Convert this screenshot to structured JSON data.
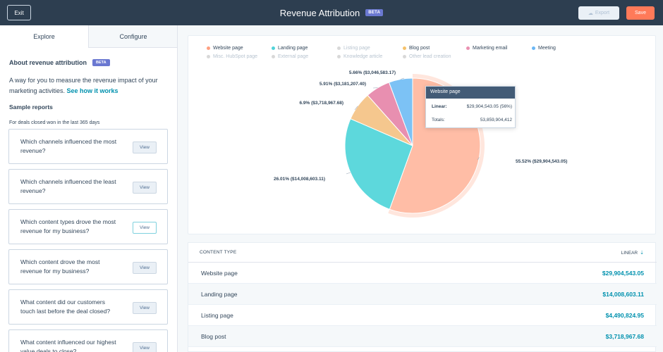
{
  "topbar": {
    "exit_label": "Exit",
    "title": "Revenue Attribution",
    "beta": "BETA",
    "export_label": "Export",
    "save_label": "Save"
  },
  "tabs": [
    {
      "label": "Explore",
      "active": true
    },
    {
      "label": "Configure",
      "active": false
    }
  ],
  "about": {
    "title": "About revenue attribution",
    "beta": "BETA",
    "description": "A way for you to measure the revenue impact of your marketing activities.",
    "link": "See how it works"
  },
  "sample_reports": {
    "title": "Sample reports",
    "subtitle": "For deals closed won in the last 365 days",
    "view_label": "View",
    "items": [
      {
        "text": "Which channels influenced the most revenue?"
      },
      {
        "text": "Which channels influenced the least revenue?"
      },
      {
        "text": "Which content types drove the most revenue for my business?"
      },
      {
        "text": "Which content drove the most revenue for my business?"
      },
      {
        "text": "What content did our customers touch last before the deal closed?"
      },
      {
        "text": "What content influenced our highest value deals to close?"
      }
    ]
  },
  "legend": [
    {
      "label": "Website page",
      "color": "#ff9f80",
      "muted": false
    },
    {
      "label": "Landing page",
      "color": "#51d3d9",
      "muted": false
    },
    {
      "label": "Listing page",
      "color": "#d8d8d8",
      "muted": true
    },
    {
      "label": "Blog post",
      "color": "#f5c26b",
      "muted": false
    },
    {
      "label": "Marketing email",
      "color": "#ea90b1",
      "muted": false
    },
    {
      "label": "Meeting",
      "color": "#6ab7f5",
      "muted": false
    },
    {
      "label": "Misc. HubSpot page",
      "color": "#d8d8d8",
      "muted": true
    },
    {
      "label": "External page",
      "color": "#d8d8d8",
      "muted": true
    },
    {
      "label": "Knowledge article",
      "color": "#d8d8d8",
      "muted": true
    },
    {
      "label": "Other lead creation",
      "color": "#d8d8d8",
      "muted": true
    }
  ],
  "chart_data": {
    "type": "pie",
    "categories": [
      "Website page",
      "Landing page",
      "Blog post",
      "Marketing email",
      "Meeting"
    ],
    "values": [
      55.52,
      26.01,
      6.9,
      5.91,
      5.66
    ],
    "colors": [
      "#ffbda6",
      "#5dd8dc",
      "#f5c78e",
      "#e88fb0",
      "#7cc2f5"
    ],
    "labels": [
      "55.52% ($29,904,543.05)",
      "26.01% ($14,008,603.11)",
      "6.9% ($3,718,967.68)",
      "5.91% ($3,181,207.40)",
      "5.66% ($3,046,583.17)"
    ]
  },
  "tooltip": {
    "title": "Website page",
    "row1_label": "Linear:",
    "row1_value": "$29,904,543.05 (56%)",
    "row2_label": "Totals:",
    "row2_value": "53,859,904,412"
  },
  "table": {
    "col_left": "CONTENT TYPE",
    "col_right": "LINEAR",
    "rows": [
      {
        "type": "Website page",
        "value": "$29,904,543.05"
      },
      {
        "type": "Landing page",
        "value": "$14,008,603.11"
      },
      {
        "type": "Listing page",
        "value": "$4,490,824.95"
      },
      {
        "type": "Blog post",
        "value": "$3,718,967.68"
      }
    ]
  }
}
